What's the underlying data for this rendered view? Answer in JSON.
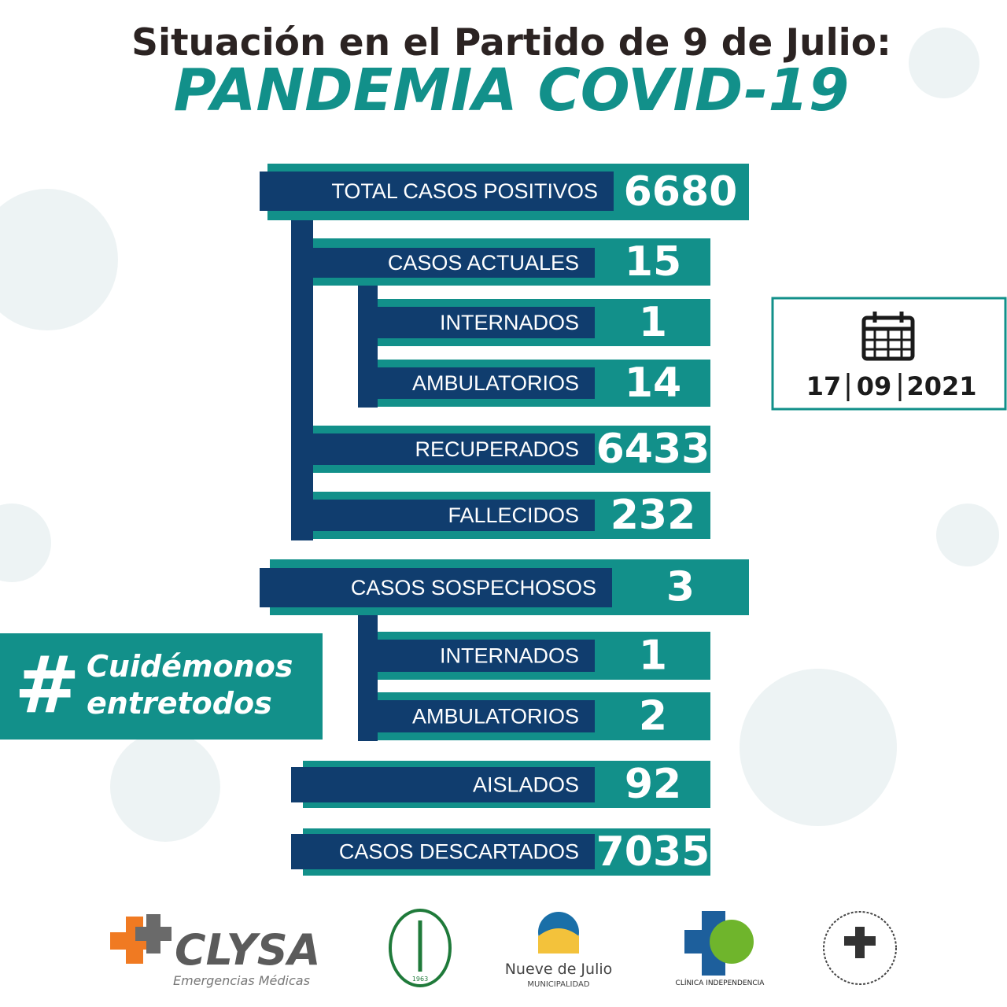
{
  "header": {
    "title": "Situación en el Partido de 9 de Julio:",
    "subtitle": "PANDEMIA COVID-19"
  },
  "rows": [
    {
      "label": "TOTAL CASOS POSITIVOS",
      "value": 6680
    },
    {
      "label": "CASOS ACTUALES",
      "value": 15
    },
    {
      "label": "INTERNADOS",
      "value": 1
    },
    {
      "label": "AMBULATORIOS",
      "value": 14
    },
    {
      "label": "RECUPERADOS",
      "value": 6433
    },
    {
      "label": "FALLECIDOS",
      "value": 232
    },
    {
      "label": "CASOS SOSPECHOSOS",
      "value": 3
    },
    {
      "label": "INTERNADOS",
      "value": 1
    },
    {
      "label": "AMBULATORIOS",
      "value": 2
    },
    {
      "label": "AISLADOS",
      "value": 92
    },
    {
      "label": "CASOS DESCARTADOS",
      "value": 7035
    }
  ],
  "date": {
    "day": "17",
    "month": "09",
    "year": "2021"
  },
  "hashtag": {
    "symbol": "#",
    "line1": "Cuidémonos",
    "line2": "entretodos"
  },
  "logos": {
    "clysa": "CLYSA",
    "clysa_sub": "Emergencias Médicas",
    "circulo_year": "1963",
    "municipio": "Nueve de Julio",
    "municipio_sub": "MUNICIPALIDAD",
    "clinica": "CLÍNICA INDEPENDENCIA"
  }
}
